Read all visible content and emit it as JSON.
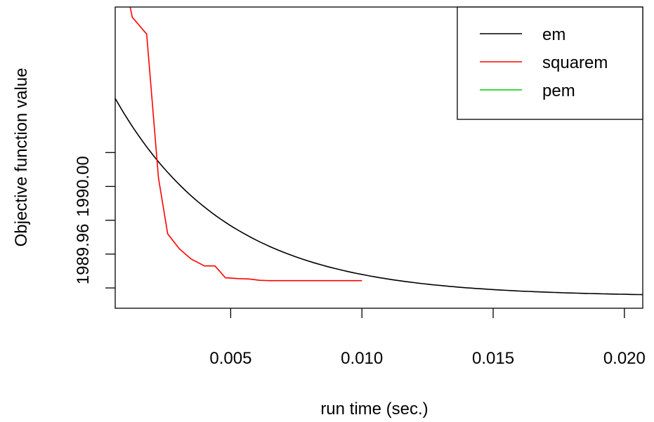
{
  "chart_data": {
    "type": "line",
    "title": "",
    "xlabel": "run time (sec.)",
    "ylabel": "Objective function value",
    "xlim": [
      0.0006,
      0.0207
    ],
    "ylim": [
      1989.928,
      1990.106
    ],
    "x_ticks": [
      0.005,
      0.01,
      0.015,
      0.02
    ],
    "x_tick_labels": [
      "0.005",
      "0.010",
      "0.015",
      "0.020"
    ],
    "y_ticks": [
      1989.94,
      1989.96,
      1989.98,
      1990.0,
      1990.02
    ],
    "y_tick_labels": [
      "",
      "1989.96",
      "",
      "1990.00",
      ""
    ],
    "grid": false,
    "legend_position": "top-right",
    "series": [
      {
        "name": "em",
        "color": "#000000",
        "curve": {
          "form": "exponential",
          "asymptote": 1989.935,
          "amplitude_at_start": 0.117,
          "start_x": 0.0006,
          "rate": 234,
          "end_x": 0.0207,
          "samples": 120
        }
      },
      {
        "name": "squarem",
        "color": "#ff0000",
        "x": [
          0.00117,
          0.00125,
          0.0018,
          0.00225,
          0.0026,
          0.00305,
          0.0035,
          0.004,
          0.0044,
          0.0048,
          0.0053,
          0.0057,
          0.0061,
          0.0065,
          0.01
        ],
        "y": [
          1990.106,
          1990.1,
          1990.09,
          1990.005,
          1989.972,
          1989.963,
          1989.957,
          1989.953,
          1989.953,
          1989.946,
          1989.9455,
          1989.9453,
          1989.9445,
          1989.9443,
          1989.9443
        ]
      },
      {
        "name": "pem",
        "color": "#00cd00",
        "x": [],
        "y": []
      }
    ]
  }
}
